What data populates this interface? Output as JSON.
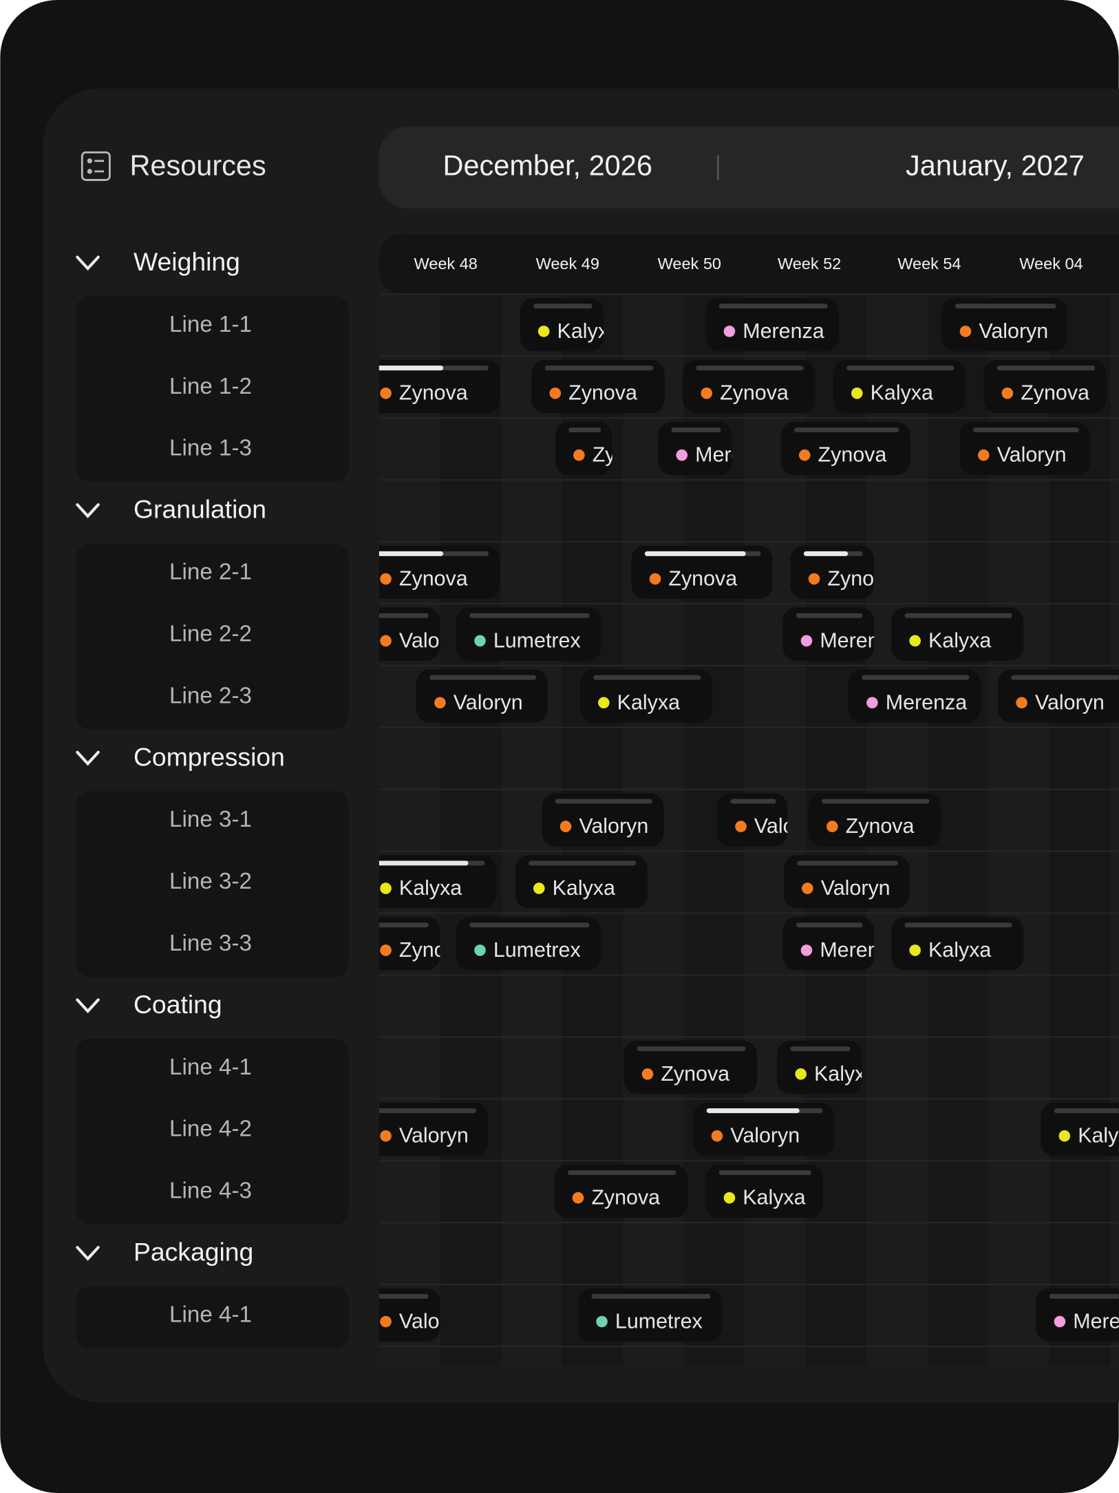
{
  "sidebar": {
    "title": "Resources",
    "groups": [
      {
        "name": "Weighing",
        "lines": [
          "Line 1-1",
          "Line 1-2",
          "Line 1-3"
        ]
      },
      {
        "name": "Granulation",
        "lines": [
          "Line 2-1",
          "Line 2-2",
          "Line 2-3"
        ]
      },
      {
        "name": "Compression",
        "lines": [
          "Line 3-1",
          "Line 3-2",
          "Line 3-3"
        ]
      },
      {
        "name": "Coating",
        "lines": [
          "Line 4-1",
          "Line 4-2",
          "Line 4-3"
        ]
      },
      {
        "name": "Packaging",
        "lines": [
          "Line 4-1"
        ]
      }
    ]
  },
  "timeline": {
    "months": [
      "December, 2026",
      "January, 2027"
    ],
    "weeks": [
      "Week 48",
      "Week 49",
      "Week 50",
      "Week 52",
      "Week 54",
      "Week 04"
    ],
    "rows": [
      {
        "tasks": [
          {
            "label": "Kalyxa",
            "color": "#e8e81a"
          },
          {
            "label": "Merenza",
            "color": "#f29de0"
          },
          {
            "label": "Valoryn",
            "color": "#f47b20"
          }
        ]
      },
      {
        "tasks": [
          {
            "label": "Zynova",
            "color": "#f47b20",
            "progress": 60
          },
          {
            "label": "Zynova",
            "color": "#f47b20"
          },
          {
            "label": "Zynova",
            "color": "#f47b20"
          },
          {
            "label": "Kalyxa",
            "color": "#e8e81a"
          },
          {
            "label": "Zynova",
            "color": "#f47b20"
          }
        ]
      },
      {
        "tasks": [
          {
            "label": "Zynova",
            "color": "#f47b20"
          },
          {
            "label": "Merenza",
            "color": "#f29de0"
          },
          {
            "label": "Zynova",
            "color": "#f47b20"
          },
          {
            "label": "Valoryn",
            "color": "#f47b20"
          }
        ]
      },
      {
        "tasks": [
          {
            "label": "Zynova",
            "color": "#f47b20",
            "progress": 60
          },
          {
            "label": "Zynova",
            "color": "#f47b20",
            "progress": 87
          },
          {
            "label": "Zynova",
            "color": "#f47b20",
            "progress": 75
          }
        ]
      },
      {
        "tasks": [
          {
            "label": "Valoryn",
            "color": "#f47b20"
          },
          {
            "label": "Lumetrex",
            "color": "#6fd1b4"
          },
          {
            "label": "Merenza",
            "color": "#f29de0"
          },
          {
            "label": "Kalyxa",
            "color": "#e8e81a"
          }
        ]
      },
      {
        "tasks": [
          {
            "label": "Valoryn",
            "color": "#f47b20"
          },
          {
            "label": "Kalyxa",
            "color": "#e8e81a"
          },
          {
            "label": "Merenza",
            "color": "#f29de0"
          },
          {
            "label": "Valoryn",
            "color": "#f47b20"
          }
        ]
      },
      {
        "tasks": [
          {
            "label": "Valoryn",
            "color": "#f47b20"
          },
          {
            "label": "Valoryn",
            "color": "#f47b20"
          },
          {
            "label": "Zynova",
            "color": "#f47b20"
          }
        ]
      },
      {
        "tasks": [
          {
            "label": "Kalyxa",
            "color": "#e8e81a",
            "progress": 85
          },
          {
            "label": "Kalyxa",
            "color": "#e8e81a"
          },
          {
            "label": "Valoryn",
            "color": "#f47b20"
          }
        ]
      },
      {
        "tasks": [
          {
            "label": "Zynova",
            "color": "#f47b20"
          },
          {
            "label": "Lumetrex",
            "color": "#6fd1b4"
          },
          {
            "label": "Merenza",
            "color": "#f29de0"
          },
          {
            "label": "Kalyxa",
            "color": "#e8e81a"
          }
        ]
      },
      {
        "tasks": [
          {
            "label": "Zynova",
            "color": "#f47b20"
          },
          {
            "label": "Kalyxa",
            "color": "#e8e81a"
          }
        ]
      },
      {
        "tasks": [
          {
            "label": "Valoryn",
            "color": "#f47b20"
          },
          {
            "label": "Valoryn",
            "color": "#f47b20",
            "progress": 80
          },
          {
            "label": "Kalyxa",
            "color": "#e8e81a"
          }
        ]
      },
      {
        "tasks": [
          {
            "label": "Zynova",
            "color": "#f47b20"
          },
          {
            "label": "Kalyxa",
            "color": "#e8e81a"
          }
        ]
      },
      {
        "tasks": [
          {
            "label": "Valoryn",
            "color": "#f47b20"
          },
          {
            "label": "Lumetrex",
            "color": "#6fd1b4"
          },
          {
            "label": "Merenza",
            "color": "#f29de0"
          }
        ]
      }
    ]
  }
}
